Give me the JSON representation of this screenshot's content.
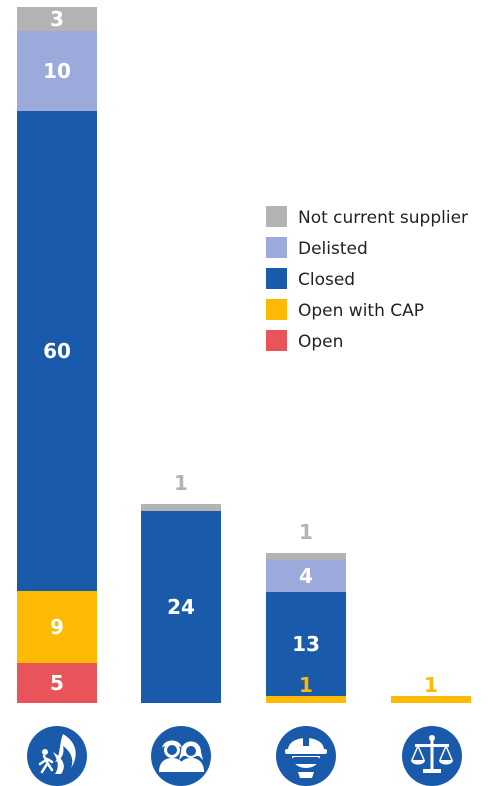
{
  "chart_data": {
    "type": "bar",
    "stacked": true,
    "categories": [
      "fire-safety-icon",
      "people-icon",
      "worker-helmet-icon",
      "justice-scales-icon"
    ],
    "series": [
      {
        "name": "Open",
        "color": "#e8545a",
        "values": [
          5,
          0,
          0,
          0
        ]
      },
      {
        "name": "Open with CAP",
        "color": "#fcba03",
        "values": [
          9,
          0,
          1,
          1
        ]
      },
      {
        "name": "Closed",
        "color": "#1a5aaa",
        "values": [
          60,
          24,
          13,
          0
        ]
      },
      {
        "name": "Delisted",
        "color": "#9caadb",
        "values": [
          10,
          0,
          4,
          0
        ]
      },
      {
        "name": "Not current supplier",
        "color": "#b3b3b3",
        "values": [
          3,
          1,
          1,
          0
        ]
      }
    ],
    "labels": [
      [
        "5",
        "9",
        "60",
        "10",
        "3"
      ],
      [
        "",
        "",
        "24",
        "",
        "1"
      ],
      [
        "",
        "1",
        "13",
        "4",
        "1"
      ],
      [
        "",
        "1",
        "",
        "",
        ""
      ]
    ],
    "legend_order": [
      "Not current supplier",
      "Delisted",
      "Closed",
      "Open with CAP",
      "Open"
    ],
    "legend_position": "right",
    "grid": false,
    "ylim": [
      0,
      87
    ]
  }
}
